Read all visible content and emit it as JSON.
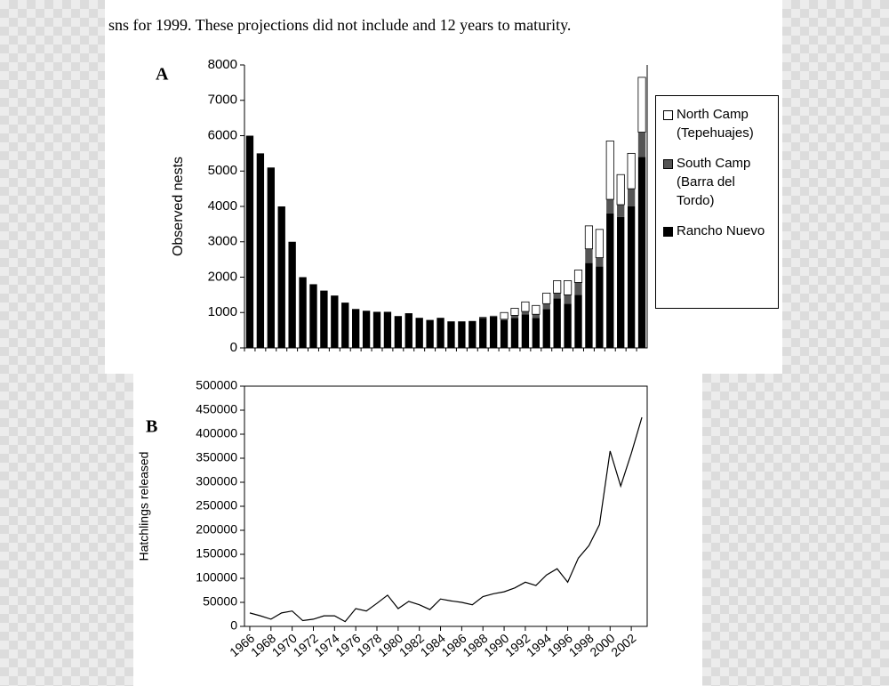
{
  "header": {
    "text": "sns for 1999. These projections did not include        and 12 years to maturity."
  },
  "chart_data": [
    {
      "type": "bar",
      "panel": "A",
      "stacked": true,
      "y_label": "Observed nests",
      "categories": [
        null,
        null,
        null,
        null,
        null,
        null,
        null,
        null,
        null,
        null,
        null,
        null,
        null,
        null,
        null,
        null,
        null,
        null,
        null,
        null,
        null,
        null,
        null,
        null,
        null,
        null,
        null,
        null,
        null,
        null,
        null,
        null,
        null,
        null,
        null,
        null,
        null,
        null
      ],
      "ylim": [
        0,
        8000
      ],
      "yticks": [
        0,
        1000,
        2000,
        3000,
        4000,
        5000,
        6000,
        7000,
        8000
      ],
      "series": [
        {
          "name": "Rancho Nuevo",
          "color": "#000000",
          "values": [
            6000,
            5500,
            5100,
            4000,
            3000,
            2000,
            1800,
            1620,
            1480,
            1280,
            1100,
            1050,
            1020,
            1020,
            900,
            980,
            850,
            790,
            850,
            750,
            750,
            760,
            850,
            880,
            780,
            850,
            950,
            850,
            1100,
            1400,
            1250,
            1500,
            2400,
            2300,
            3800,
            3700,
            4000,
            5400
          ]
        },
        {
          "name": "South Camp (Barra del Tordo)",
          "color": "#555555",
          "values": [
            0,
            0,
            0,
            0,
            0,
            0,
            0,
            0,
            0,
            0,
            0,
            0,
            0,
            0,
            0,
            0,
            0,
            0,
            0,
            0,
            0,
            0,
            30,
            30,
            30,
            70,
            80,
            100,
            150,
            150,
            250,
            350,
            400,
            250,
            400,
            350,
            500,
            700
          ]
        },
        {
          "name": "North Camp (Tepehuajes)",
          "color": "#ffffff",
          "values": [
            0,
            0,
            0,
            0,
            0,
            0,
            0,
            0,
            0,
            0,
            0,
            0,
            0,
            0,
            0,
            0,
            0,
            0,
            0,
            0,
            0,
            0,
            0,
            0,
            190,
            200,
            270,
            250,
            300,
            350,
            400,
            350,
            650,
            800,
            1650,
            850,
            1000,
            1550
          ]
        }
      ]
    },
    {
      "type": "line",
      "panel": "B",
      "y_label": "Hatchlings released",
      "color": "#000000",
      "x": [
        1966,
        1967,
        1968,
        1969,
        1970,
        1971,
        1972,
        1973,
        1974,
        1975,
        1976,
        1977,
        1978,
        1979,
        1980,
        1981,
        1982,
        1983,
        1984,
        1985,
        1986,
        1987,
        1988,
        1989,
        1990,
        1991,
        1992,
        1993,
        1994,
        1995,
        1996,
        1997,
        1998,
        1999,
        2000,
        2001,
        2002,
        2003
      ],
      "values": [
        28000,
        22000,
        15000,
        28000,
        32000,
        12000,
        15000,
        22000,
        22000,
        10000,
        37000,
        32000,
        48000,
        65000,
        37000,
        52000,
        45000,
        35000,
        57000,
        53000,
        50000,
        45000,
        62000,
        68000,
        72000,
        80000,
        92000,
        85000,
        107000,
        120000,
        92000,
        142000,
        168000,
        212000,
        365000,
        292000,
        360000,
        435000
      ],
      "xlim": [
        1965.5,
        2003.5
      ],
      "xticks": [
        1966,
        1968,
        1970,
        1972,
        1974,
        1976,
        1978,
        1980,
        1982,
        1984,
        1986,
        1988,
        1990,
        1992,
        1994,
        1996,
        1998,
        2000,
        2002
      ],
      "ylim": [
        0,
        500000
      ],
      "yticks": [
        0,
        50000,
        100000,
        150000,
        200000,
        250000,
        300000,
        350000,
        400000,
        450000,
        500000
      ]
    }
  ]
}
